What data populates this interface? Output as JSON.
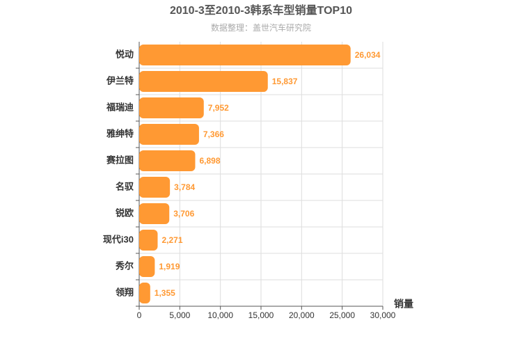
{
  "chart_data": {
    "type": "hbar",
    "title": "2010-3至2010-3韩系车型销量TOP10",
    "subtitle": "数据整理：盖世汽车研究院",
    "x_label": "销量",
    "categories": [
      "悦动",
      "伊兰特",
      "福瑞迪",
      "雅绅特",
      "赛拉图",
      "名驭",
      "锐欧",
      "现代i30",
      "秀尔",
      "领翔"
    ],
    "values": [
      26034,
      15837,
      7952,
      7366,
      6898,
      3784,
      3706,
      2271,
      1919,
      1355
    ],
    "value_labels": [
      "26,034",
      "15,837",
      "7,952",
      "7,366",
      "6,898",
      "3,784",
      "3,706",
      "2,271",
      "1,919",
      "1,355"
    ],
    "color": "#ff9933",
    "xlim": [
      0,
      30000
    ],
    "xticks": [
      0,
      {
        "value": 5000,
        "label": "5,000"
      },
      {
        "value": 10000,
        "label": "10,000"
      },
      {
        "value": 15000,
        "label": "15,000"
      },
      {
        "value": 20000,
        "label": "20,000"
      },
      {
        "value": 25000,
        "label": "25,000"
      },
      {
        "value": 30000,
        "label": "30,000"
      }
    ],
    "grid": true
  }
}
